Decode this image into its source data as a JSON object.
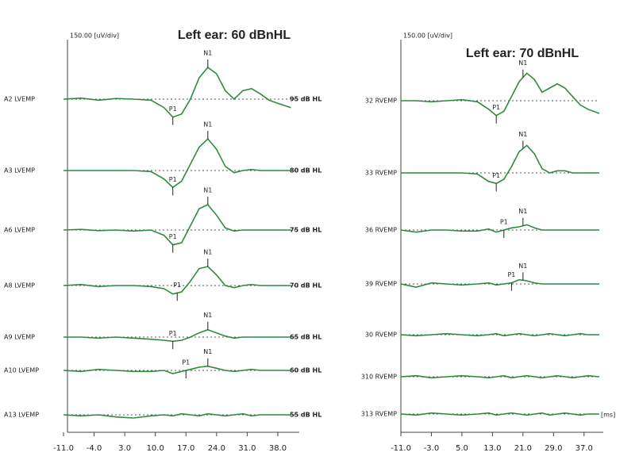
{
  "chart_data": [
    {
      "type": "line",
      "title": "Left ear: 60 dBnHL",
      "scale_label": "150.00 [uV/div]",
      "xlim": [
        -11,
        42
      ],
      "xticks": [
        {
          "value": -11,
          "label": "-11.0"
        },
        {
          "value": -4,
          "label": "-4.0"
        },
        {
          "value": 3,
          "label": "3.0"
        },
        {
          "value": 10,
          "label": "10.0"
        },
        {
          "value": 17,
          "label": "17.0"
        },
        {
          "value": 24,
          "label": "24.0"
        },
        {
          "value": 31,
          "label": "31.0"
        },
        {
          "value": 38,
          "label": "38.0"
        }
      ],
      "x": [
        -11,
        -7,
        -3,
        1,
        5,
        9,
        12,
        14,
        16,
        18,
        20,
        22,
        24,
        26,
        28,
        30,
        32,
        34,
        36,
        38,
        41
      ],
      "series": [
        {
          "name": "A2 LVEMP",
          "level": "95 dB HL",
          "color": "#2e8b3e",
          "values": [
            0,
            5,
            -5,
            3,
            0,
            -5,
            -40,
            -85,
            -70,
            0,
            100,
            150,
            120,
            40,
            0,
            40,
            50,
            25,
            -5,
            -20,
            -40
          ],
          "peaks": [
            {
              "label": "P1",
              "x": 14
            },
            {
              "label": "N1",
              "x": 22
            }
          ]
        },
        {
          "name": "A3 LVEMP",
          "level": "80 dB HL",
          "color": "#2e8b3e",
          "values": [
            0,
            0,
            0,
            0,
            0,
            -5,
            -40,
            -80,
            -50,
            30,
            110,
            150,
            100,
            20,
            -10,
            0,
            5,
            0,
            0,
            0,
            0
          ],
          "peaks": [
            {
              "label": "P1",
              "x": 14
            },
            {
              "label": "N1",
              "x": 22
            }
          ]
        },
        {
          "name": "A6 LVEMP",
          "level": "75 dB HL",
          "color": "#2e8b3e",
          "values": [
            0,
            3,
            -3,
            0,
            -5,
            0,
            -25,
            -70,
            -60,
            20,
            100,
            120,
            70,
            10,
            -5,
            0,
            0,
            0,
            0,
            0,
            0
          ],
          "peaks": [
            {
              "label": "P1",
              "x": 14
            },
            {
              "label": "N1",
              "x": 22
            }
          ]
        },
        {
          "name": "A8 LVEMP",
          "level": "70 dB HL",
          "color": "#2e8b3e",
          "values": [
            0,
            5,
            -5,
            0,
            0,
            -5,
            -15,
            -40,
            -30,
            20,
            80,
            90,
            50,
            0,
            -10,
            0,
            5,
            0,
            0,
            0,
            0
          ],
          "peaks": [
            {
              "label": "P1",
              "x": 15
            },
            {
              "label": "N1",
              "x": 22
            }
          ]
        },
        {
          "name": "A9 LVEMP",
          "level": "65 dB HL",
          "color": "#2e8b3e",
          "values": [
            0,
            0,
            -5,
            0,
            -5,
            -10,
            -15,
            -20,
            -15,
            0,
            20,
            35,
            20,
            5,
            -5,
            0,
            0,
            0,
            0,
            0,
            0
          ],
          "peaks": [
            {
              "label": "P1",
              "x": 14
            },
            {
              "label": "N1",
              "x": 22
            }
          ]
        },
        {
          "name": "A10 LVEMP",
          "level": "60 dB HL",
          "color": "#2e8b3e",
          "values": [
            0,
            -5,
            5,
            0,
            -5,
            -5,
            0,
            -15,
            -5,
            5,
            15,
            20,
            10,
            0,
            -5,
            0,
            5,
            0,
            0,
            0,
            0
          ],
          "peaks": [
            {
              "label": "P1",
              "x": 17
            },
            {
              "label": "N1",
              "x": 22
            }
          ]
        },
        {
          "name": "A13 LVEMP",
          "level": "55 dB HL",
          "color": "#2e8b3e",
          "values": [
            0,
            -5,
            0,
            -10,
            -15,
            -5,
            0,
            -5,
            5,
            0,
            -5,
            5,
            0,
            -5,
            0,
            5,
            -5,
            0,
            0,
            0,
            0
          ],
          "peaks": []
        }
      ]
    },
    {
      "type": "line",
      "title": "Left ear: 70 dBnHL",
      "scale_label": "150.00 [uV/div]",
      "x_unit": "[ms]",
      "xlim": [
        -11,
        41
      ],
      "xticks": [
        {
          "value": -11,
          "label": "-11.0"
        },
        {
          "value": -3,
          "label": "-3.0"
        },
        {
          "value": 5,
          "label": "5.0"
        },
        {
          "value": 13,
          "label": "13.0"
        },
        {
          "value": 21,
          "label": "21.0"
        },
        {
          "value": 29,
          "label": "29.0"
        },
        {
          "value": 37,
          "label": "37.0"
        }
      ],
      "x": [
        -11,
        -7,
        -3,
        1,
        5,
        9,
        12,
        14,
        16,
        18,
        20,
        22,
        24,
        26,
        28,
        30,
        32,
        34,
        36,
        38,
        41
      ],
      "series": [
        {
          "name": "32 RVEMP",
          "color": "#2e8b3e",
          "values": [
            0,
            0,
            -5,
            0,
            5,
            -5,
            -40,
            -70,
            -50,
            20,
            90,
            130,
            100,
            40,
            60,
            80,
            60,
            20,
            -20,
            -40,
            -60
          ],
          "peaks": [
            {
              "label": "P1",
              "x": 14
            },
            {
              "label": "N1",
              "x": 21
            }
          ]
        },
        {
          "name": "33 RVEMP",
          "color": "#2e8b3e",
          "values": [
            0,
            0,
            0,
            0,
            0,
            -5,
            -40,
            -50,
            -30,
            30,
            100,
            130,
            90,
            20,
            0,
            10,
            10,
            0,
            0,
            0,
            0
          ],
          "peaks": [
            {
              "label": "P1",
              "x": 14
            },
            {
              "label": "N1",
              "x": 21
            }
          ]
        },
        {
          "name": "36 RVEMP",
          "color": "#2e8b3e",
          "values": [
            0,
            -10,
            0,
            0,
            -5,
            -5,
            5,
            -10,
            0,
            10,
            15,
            25,
            10,
            0,
            0,
            0,
            0,
            0,
            0,
            0,
            0
          ],
          "peaks": [
            {
              "label": "P1",
              "x": 16
            },
            {
              "label": "N1",
              "x": 21
            }
          ]
        },
        {
          "name": "39 RVEMP",
          "color": "#2e8b3e",
          "values": [
            0,
            -15,
            5,
            0,
            -5,
            0,
            5,
            -5,
            0,
            5,
            20,
            15,
            5,
            0,
            0,
            0,
            0,
            0,
            0,
            0,
            0
          ],
          "peaks": [
            {
              "label": "P1",
              "x": 18
            },
            {
              "label": "N1",
              "x": 21
            }
          ]
        },
        {
          "name": "30 RVEMP",
          "color": "#2e8b3e",
          "values": [
            0,
            -5,
            0,
            5,
            0,
            -5,
            0,
            5,
            -5,
            0,
            5,
            0,
            -5,
            0,
            5,
            0,
            -5,
            0,
            5,
            0,
            0
          ],
          "peaks": []
        },
        {
          "name": "310 RVEMP",
          "color": "#2e8b3e",
          "values": [
            0,
            5,
            -5,
            0,
            5,
            0,
            -5,
            0,
            5,
            -5,
            0,
            5,
            0,
            -5,
            0,
            5,
            0,
            -5,
            0,
            5,
            0
          ],
          "peaks": []
        },
        {
          "name": "313 RVEMP",
          "color": "#2e8b3e",
          "values": [
            0,
            -5,
            5,
            0,
            -5,
            0,
            5,
            -5,
            0,
            5,
            0,
            -5,
            0,
            5,
            -5,
            0,
            5,
            0,
            -5,
            0,
            0
          ],
          "peaks": []
        }
      ]
    }
  ]
}
